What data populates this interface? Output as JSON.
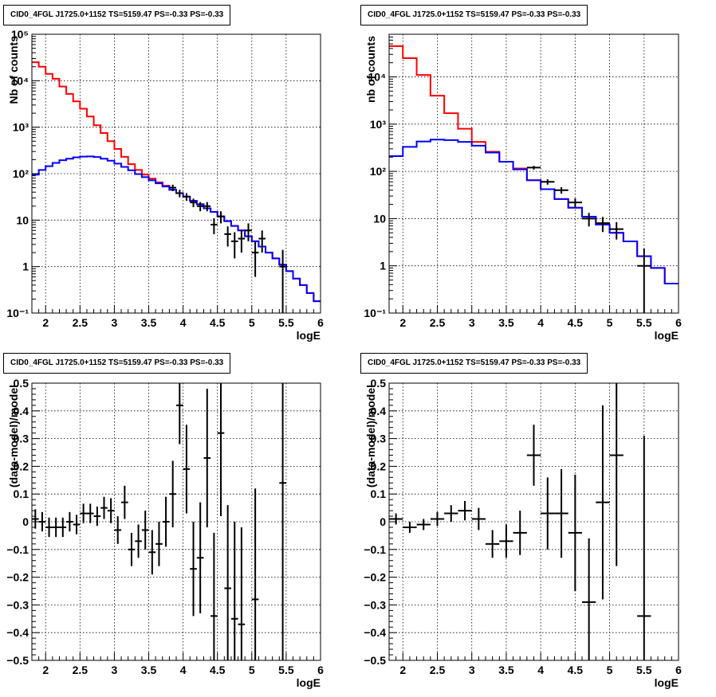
{
  "chart_data": [
    {
      "type": "line",
      "title": "CID0_4FGL J1725.0+1152 TS=5159.47 PS=-0.33 PS=-0.33",
      "xlabel": "logE",
      "ylabel": "Nb of counts",
      "xlim": [
        1.8,
        6.0
      ],
      "ylim": [
        0.1,
        100000
      ],
      "yscale": "log",
      "grid": true,
      "xticks": [
        "2",
        "2.5",
        "3",
        "3.5",
        "4",
        "4.5",
        "5",
        "5.5",
        "6"
      ],
      "yticks": [
        "10⁻¹",
        "1",
        "10",
        "10²",
        "10³",
        "10⁴",
        "10⁵"
      ],
      "bin_width": 0.1,
      "series": [
        {
          "color": "#ff0000",
          "kind": "step",
          "x": [
            1.85,
            1.95,
            2.05,
            2.15,
            2.25,
            2.35,
            2.45,
            2.55,
            2.65,
            2.75,
            2.85,
            2.95,
            3.05,
            3.15,
            3.25,
            3.35,
            3.45,
            3.55,
            3.65,
            3.75,
            3.85,
            3.95,
            4.05,
            4.15,
            4.25,
            4.35,
            4.45,
            4.55,
            4.65,
            4.75,
            4.85,
            4.95,
            5.05,
            5.15,
            5.25,
            5.35,
            5.45,
            5.55,
            5.65,
            5.75,
            5.85,
            5.95
          ],
          "y": [
            25000,
            20000,
            14000,
            11000,
            7500,
            5200,
            3600,
            2500,
            1700,
            1100,
            750,
            500,
            340,
            230,
            160,
            120,
            95,
            78,
            65,
            55,
            45,
            38,
            32,
            26,
            22,
            18,
            15,
            12,
            9.5,
            7.5,
            6,
            4.5,
            3.5,
            2.7,
            2,
            1.5,
            1.1,
            0.8,
            0.55,
            0.4,
            0.27,
            0.18
          ]
        },
        {
          "color": "#0000ff",
          "kind": "step",
          "x": [
            1.85,
            1.95,
            2.05,
            2.15,
            2.25,
            2.35,
            2.45,
            2.55,
            2.65,
            2.75,
            2.85,
            2.95,
            3.05,
            3.15,
            3.25,
            3.35,
            3.45,
            3.55,
            3.65,
            3.75,
            3.85,
            3.95,
            4.05,
            4.15,
            4.25,
            4.35,
            4.45,
            4.55,
            4.65,
            4.75,
            4.85,
            4.95,
            5.05,
            5.15,
            5.25,
            5.35,
            5.45,
            5.55,
            5.65,
            5.75,
            5.85,
            5.95
          ],
          "y": [
            95,
            120,
            145,
            170,
            195,
            210,
            225,
            232,
            235,
            228,
            210,
            190,
            165,
            140,
            118,
            98,
            84,
            72,
            62,
            53,
            45,
            38,
            32,
            26,
            22,
            18,
            15,
            12,
            9.5,
            7.5,
            6,
            4.5,
            3.5,
            2.7,
            2,
            1.5,
            1.1,
            0.8,
            0.55,
            0.4,
            0.27,
            0.18
          ]
        },
        {
          "color": "#000000",
          "kind": "points",
          "x": [
            3.85,
            3.95,
            4.05,
            4.15,
            4.25,
            4.35,
            4.45,
            4.55,
            4.65,
            4.75,
            4.85,
            4.95,
            5.05,
            5.15,
            5.45
          ],
          "y": [
            50,
            38,
            32,
            24,
            20,
            20,
            8,
            12,
            5,
            3.5,
            4,
            6,
            2,
            4,
            1
          ],
          "err_low": [
            8,
            7,
            6,
            5,
            4.5,
            4.5,
            3,
            3.5,
            2.3,
            2,
            2,
            2.5,
            1.4,
            2,
            0.95
          ],
          "err_high": [
            8,
            7,
            6,
            5,
            4.5,
            4.5,
            3,
            3.5,
            2.3,
            2,
            2,
            2.5,
            1.4,
            2,
            1.3
          ]
        }
      ]
    },
    {
      "type": "line",
      "title": "CID0_4FGL J1725.0+1152 TS=5159.47 PS=-0.33 PS=-0.33",
      "xlabel": "logE",
      "ylabel": "nb of counts",
      "xlim": [
        1.8,
        6.0
      ],
      "ylim": [
        0.1,
        80000
      ],
      "yscale": "log",
      "grid": true,
      "xticks": [
        "2",
        "2.5",
        "3",
        "3.5",
        "4",
        "4.5",
        "5",
        "5.5",
        "6"
      ],
      "yticks": [
        "10⁻¹",
        "1",
        "10",
        "10²",
        "10³",
        "10⁴"
      ],
      "bin_width": 0.2,
      "series": [
        {
          "color": "#ff0000",
          "kind": "step",
          "x": [
            1.9,
            2.1,
            2.3,
            2.5,
            2.7,
            2.9,
            3.1,
            3.3,
            3.5,
            3.7,
            3.9,
            4.1,
            4.3,
            4.5,
            4.7,
            4.9,
            5.1,
            5.3,
            5.5,
            5.7,
            5.9
          ],
          "y": [
            45000,
            25000,
            11000,
            4000,
            1700,
            800,
            420,
            260,
            160,
            115,
            65,
            42,
            26,
            17,
            11,
            7.5,
            5,
            3.3,
            1.6,
            0.9,
            0.42
          ]
        },
        {
          "color": "#0000ff",
          "kind": "step",
          "x": [
            1.9,
            2.1,
            2.3,
            2.5,
            2.7,
            2.9,
            3.1,
            3.3,
            3.5,
            3.7,
            3.9,
            4.1,
            4.3,
            4.5,
            4.7,
            4.9,
            5.1,
            5.3,
            5.5,
            5.7,
            5.9
          ],
          "y": [
            210,
            330,
            430,
            470,
            460,
            420,
            350,
            250,
            160,
            110,
            65,
            42,
            26,
            17,
            11,
            7.5,
            5,
            3.3,
            1.6,
            0.9,
            0.42
          ]
        },
        {
          "color": "#000000",
          "kind": "points",
          "x": [
            3.9,
            4.1,
            4.3,
            4.5,
            4.7,
            4.9,
            5.1,
            5.5
          ],
          "y": [
            120,
            60,
            40,
            22,
            10,
            8,
            6,
            1
          ],
          "err_low": [
            11,
            7.7,
            6.3,
            4.7,
            3.2,
            2.8,
            2.4,
            0.95
          ],
          "err_high": [
            11,
            7.7,
            6.3,
            4.7,
            3.2,
            2.8,
            2.4,
            1.3
          ]
        }
      ]
    },
    {
      "type": "scatter",
      "title": "CID0_4FGL J1725.0+1152 TS=5159.47 PS=-0.33 PS=-0.33",
      "xlabel": "logE",
      "ylabel": "(data-model)/model",
      "xlim": [
        1.8,
        6.0
      ],
      "ylim": [
        -0.5,
        0.5
      ],
      "grid": true,
      "xticks": [
        "2",
        "2.5",
        "3",
        "3.5",
        "4",
        "4.5",
        "5",
        "5.5",
        "6"
      ],
      "yticks": [
        "−0.5",
        "−0.4",
        "−0.3",
        "−0.2",
        "−0.1",
        "0",
        "0.1",
        "0.2",
        "0.3",
        "0.4",
        "0.5"
      ],
      "bin_width": 0.1,
      "series": [
        {
          "color": "#000000",
          "x": [
            1.85,
            1.95,
            2.05,
            2.15,
            2.25,
            2.35,
            2.45,
            2.55,
            2.65,
            2.75,
            2.85,
            2.95,
            3.05,
            3.15,
            3.25,
            3.35,
            3.45,
            3.55,
            3.65,
            3.75,
            3.85,
            3.95,
            4.05,
            4.15,
            4.25,
            4.35,
            4.45,
            4.55,
            4.65,
            4.75,
            4.85,
            4.95,
            5.05,
            5.15,
            5.45
          ],
          "y": [
            0.01,
            0.0,
            -0.02,
            -0.02,
            -0.02,
            0.0,
            -0.01,
            0.03,
            0.03,
            0.02,
            0.05,
            0.04,
            -0.03,
            0.07,
            -0.1,
            -0.07,
            -0.03,
            -0.11,
            -0.08,
            0.0,
            0.1,
            0.42,
            0.19,
            -0.17,
            -0.13,
            0.23,
            -0.34,
            0.32,
            -0.24,
            -0.35,
            -0.37,
            0.0,
            -0.28,
            0.0,
            0.14
          ],
          "err": [
            0.035,
            0.035,
            0.035,
            0.035,
            0.035,
            0.035,
            0.035,
            0.035,
            0.035,
            0.035,
            0.04,
            0.045,
            0.05,
            0.06,
            0.06,
            0.06,
            0.07,
            0.08,
            0.08,
            0.09,
            0.12,
            0.14,
            0.16,
            0.17,
            0.2,
            0.25,
            0.3,
            0.3,
            0.3,
            0.35,
            0.35,
            0.0,
            0.4,
            0.0,
            0.9
          ],
          "draw": [
            true,
            true,
            true,
            true,
            true,
            true,
            true,
            true,
            true,
            true,
            true,
            true,
            true,
            true,
            true,
            true,
            true,
            true,
            true,
            true,
            true,
            true,
            true,
            true,
            true,
            true,
            true,
            true,
            true,
            true,
            true,
            false,
            true,
            false,
            true
          ]
        }
      ]
    },
    {
      "type": "scatter",
      "title": "CID0_4FGL J1725.0+1152 TS=5159.47 PS=-0.33 PS=-0.33",
      "xlabel": "logE",
      "ylabel": "(data-model)/model",
      "xlim": [
        1.8,
        6.0
      ],
      "ylim": [
        -0.5,
        0.5
      ],
      "grid": true,
      "xticks": [
        "2",
        "2.5",
        "3",
        "3.5",
        "4",
        "4.5",
        "5",
        "5.5",
        "6"
      ],
      "yticks": [
        "−0.5",
        "−0.4",
        "−0.3",
        "−0.2",
        "−0.1",
        "0",
        "0.1",
        "0.2",
        "0.3",
        "0.4",
        "0.5"
      ],
      "bin_width": 0.2,
      "series": [
        {
          "color": "#000000",
          "x": [
            1.9,
            2.1,
            2.3,
            2.5,
            2.7,
            2.9,
            3.1,
            3.3,
            3.5,
            3.7,
            3.9,
            4.1,
            4.3,
            4.5,
            4.7,
            4.9,
            5.1,
            5.5
          ],
          "y": [
            0.01,
            -0.02,
            -0.01,
            0.01,
            0.03,
            0.04,
            0.01,
            -0.08,
            -0.07,
            -0.04,
            0.24,
            0.03,
            0.03,
            -0.04,
            -0.29,
            0.07,
            0.24,
            -0.34
          ],
          "err": [
            0.02,
            0.02,
            0.02,
            0.025,
            0.03,
            0.035,
            0.04,
            0.05,
            0.06,
            0.08,
            0.11,
            0.13,
            0.16,
            0.21,
            0.23,
            0.35,
            0.4,
            0.65
          ]
        }
      ]
    }
  ]
}
